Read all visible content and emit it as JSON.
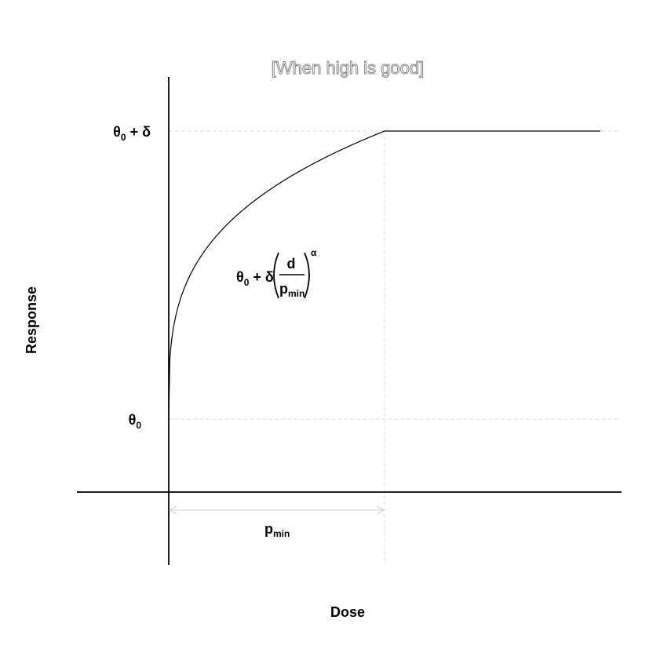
{
  "chart_data": {
    "type": "line",
    "title": "[When high is good]",
    "xlabel": "Dose",
    "ylabel": "Response",
    "y_tick_labels": [
      {
        "base": "θ",
        "sub": "0",
        "rest": " + δ"
      },
      {
        "base": "θ",
        "sub": "0",
        "rest": ""
      }
    ],
    "x_annotation": {
      "base": "p",
      "sub": "min"
    },
    "formula": {
      "prefix_base": "θ",
      "prefix_sub": "0",
      "prefix_rest": " + δ",
      "numerator": "d",
      "denominator_base": "p",
      "denominator_sub": "min",
      "exponent": "α"
    },
    "model": {
      "theta0": 0,
      "delta": 1,
      "p_min": 1,
      "alpha": 0.3,
      "x_max": 2
    },
    "grid": false
  }
}
